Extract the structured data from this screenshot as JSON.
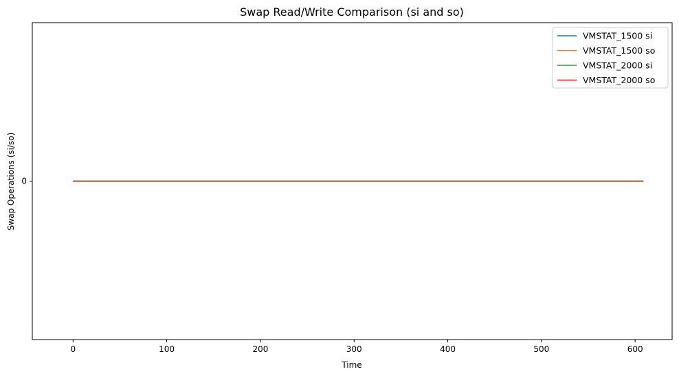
{
  "chart_data": {
    "type": "line",
    "title": "Swap Read/Write Comparison (si and so)",
    "xlabel": "Time",
    "ylabel": "Swap Operations (si/so)",
    "xlim": [
      -43.5,
      639.5
    ],
    "ylim": [
      -0.055,
      0.055
    ],
    "x_ticks": [
      0,
      100,
      200,
      300,
      400,
      500,
      600
    ],
    "y_ticks": [
      0
    ],
    "grid": false,
    "legend_position": "top-right",
    "series": [
      {
        "name": "VMSTAT_1500 si",
        "color": "#1f77b4",
        "x": [
          0,
          609
        ],
        "y": [
          0,
          0
        ]
      },
      {
        "name": "VMSTAT_1500 so",
        "color": "#ff7f0e",
        "x": [
          0,
          609
        ],
        "y": [
          0,
          0
        ]
      },
      {
        "name": "VMSTAT_2000 si",
        "color": "#2ca02c",
        "x": [
          0,
          609
        ],
        "y": [
          0,
          0
        ]
      },
      {
        "name": "VMSTAT_2000 so",
        "color": "#d62728",
        "x": [
          0,
          609
        ],
        "y": [
          0,
          0
        ]
      }
    ]
  }
}
